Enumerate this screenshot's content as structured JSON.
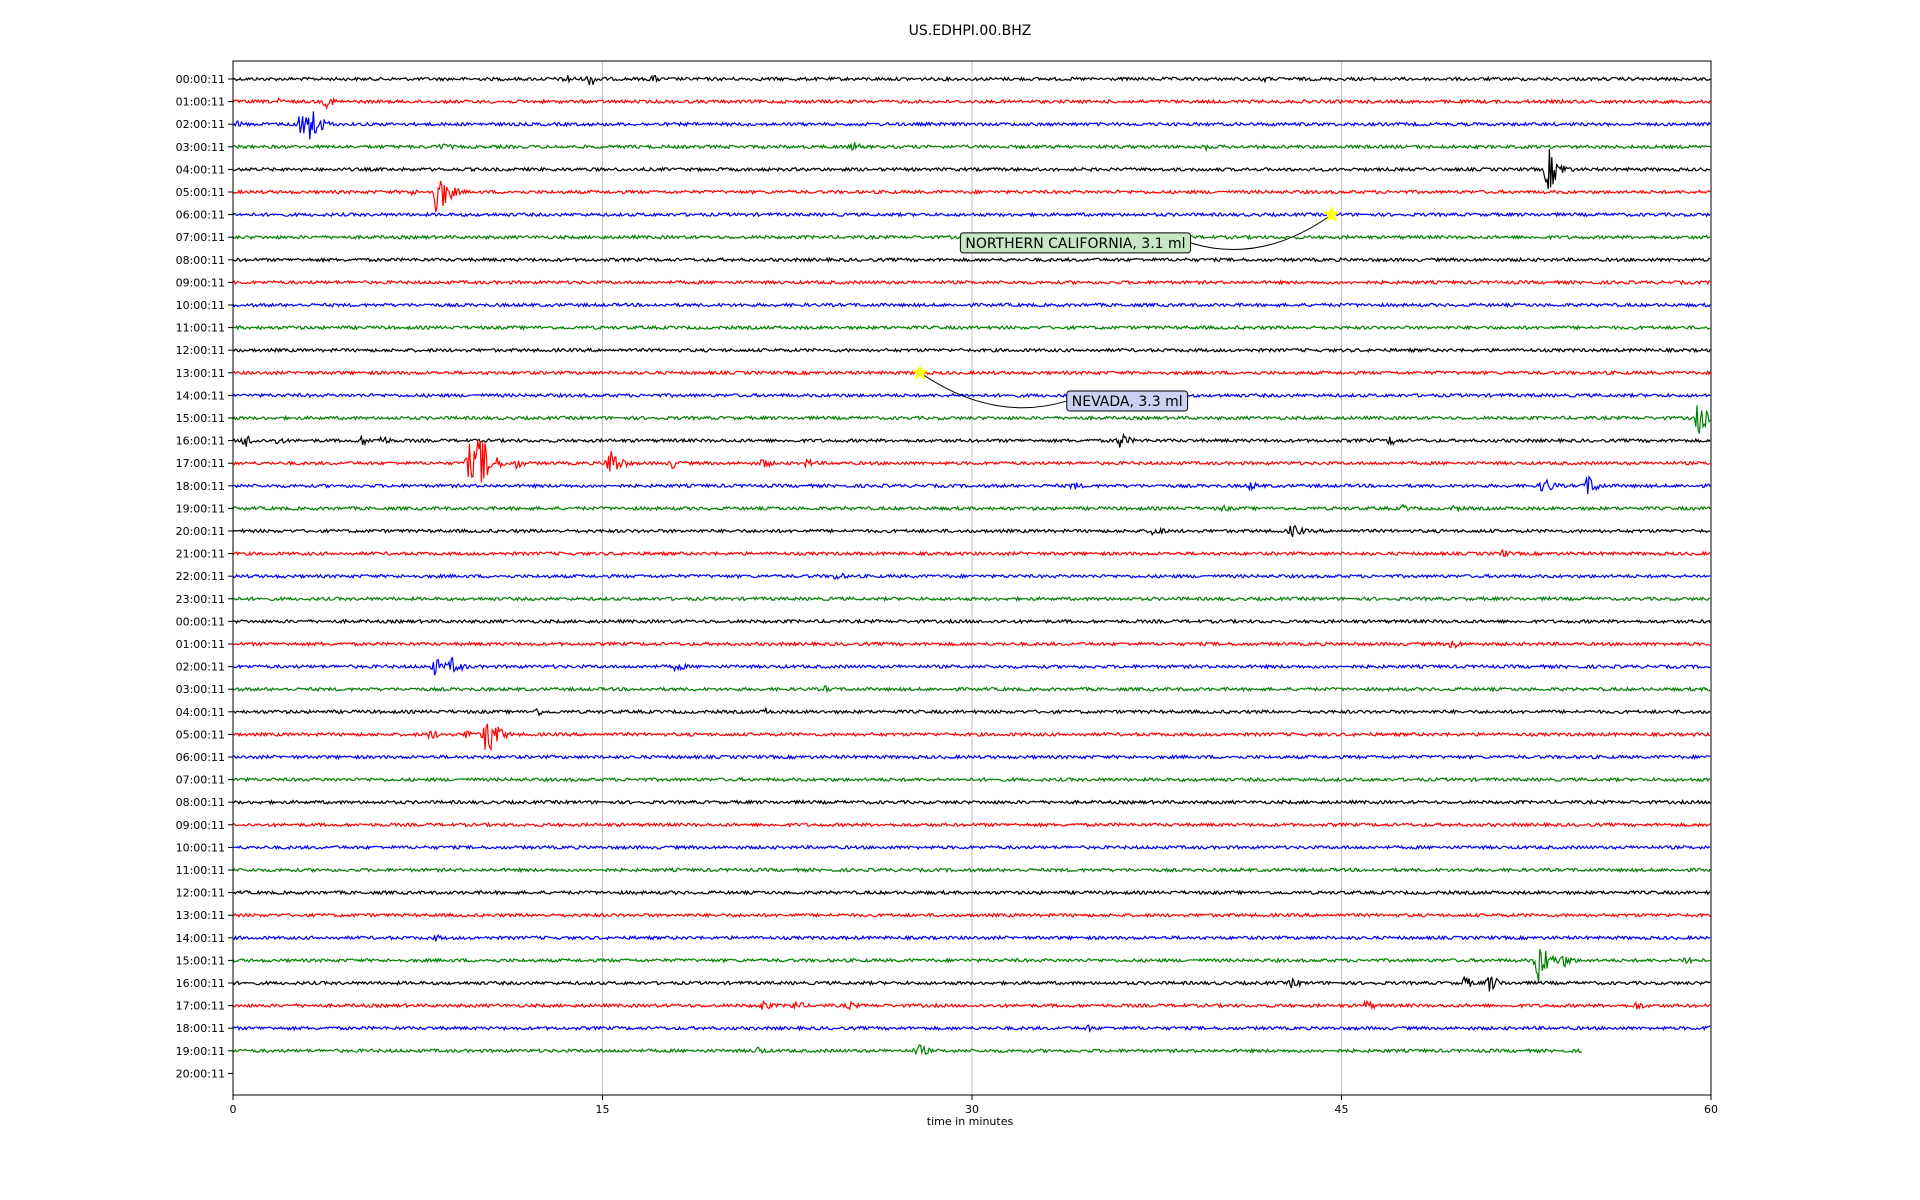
{
  "chart_data": {
    "type": "line",
    "title": "US.EDHPI.00.BHZ",
    "xlabel": "time in minutes",
    "ylabel": "",
    "xlim": [
      0,
      60
    ],
    "xticks": [
      "0",
      "15",
      "30",
      "45",
      "60"
    ],
    "grid": "vertical gridlines at x ticks",
    "colors": [
      "#000000",
      "#ff0000",
      "#0000ff",
      "#008000"
    ],
    "row_labels": [
      "00:00:11",
      "01:00:11",
      "02:00:11",
      "03:00:11",
      "04:00:11",
      "05:00:11",
      "06:00:11",
      "07:00:11",
      "08:00:11",
      "09:00:11",
      "10:00:11",
      "11:00:11",
      "12:00:11",
      "13:00:11",
      "14:00:11",
      "15:00:11",
      "16:00:11",
      "17:00:11",
      "18:00:11",
      "19:00:11",
      "20:00:11",
      "21:00:11",
      "22:00:11",
      "23:00:11",
      "00:00:11",
      "01:00:11",
      "02:00:11",
      "03:00:11",
      "04:00:11",
      "05:00:11",
      "06:00:11",
      "07:00:11",
      "08:00:11",
      "09:00:11",
      "10:00:11",
      "11:00:11",
      "12:00:11",
      "13:00:11",
      "14:00:11",
      "15:00:11",
      "16:00:11",
      "17:00:11",
      "18:00:11",
      "19:00:11",
      "20:00:11"
    ],
    "last_row_end_minute": 54.8,
    "events": [
      {
        "row": 0,
        "t": 13.5,
        "amp": 6
      },
      {
        "row": 0,
        "t": 14.5,
        "amp": 8
      },
      {
        "row": 0,
        "t": 17,
        "amp": 5
      },
      {
        "row": 0,
        "t": 41.8,
        "amp": 4
      },
      {
        "row": 1,
        "t": 1.8,
        "amp": 4
      },
      {
        "row": 1,
        "t": 3.8,
        "amp": 7
      },
      {
        "row": 2,
        "t": 0.2,
        "amp": 4
      },
      {
        "row": 2,
        "t": 2.6,
        "amp": 14
      },
      {
        "row": 2,
        "t": 3.0,
        "amp": 30
      },
      {
        "row": 3,
        "t": 8.5,
        "amp": 5
      },
      {
        "row": 3,
        "t": 25.2,
        "amp": 5
      },
      {
        "row": 3,
        "t": 39.5,
        "amp": 4
      },
      {
        "row": 4,
        "t": 53.4,
        "amp": 24
      },
      {
        "row": 5,
        "t": 7.2,
        "amp": 4
      },
      {
        "row": 5,
        "t": 8.3,
        "amp": 28
      },
      {
        "row": 15,
        "t": 59.5,
        "amp": 18
      },
      {
        "row": 16,
        "t": 0.5,
        "amp": 8
      },
      {
        "row": 16,
        "t": 1.8,
        "amp": 5
      },
      {
        "row": 16,
        "t": 5.2,
        "amp": 6
      },
      {
        "row": 16,
        "t": 6.0,
        "amp": 6
      },
      {
        "row": 16,
        "t": 36,
        "amp": 9
      },
      {
        "row": 16,
        "t": 47,
        "amp": 6
      },
      {
        "row": 17,
        "t": 9.6,
        "amp": 20
      },
      {
        "row": 17,
        "t": 10.0,
        "amp": 36
      },
      {
        "row": 17,
        "t": 11.5,
        "amp": 6
      },
      {
        "row": 17,
        "t": 15.3,
        "amp": 18
      },
      {
        "row": 17,
        "t": 17.8,
        "amp": 6
      },
      {
        "row": 17,
        "t": 21.5,
        "amp": 6
      },
      {
        "row": 17,
        "t": 23.3,
        "amp": 5
      },
      {
        "row": 18,
        "t": 34.1,
        "amp": 5
      },
      {
        "row": 18,
        "t": 41.3,
        "amp": 5
      },
      {
        "row": 18,
        "t": 53.2,
        "amp": 10
      },
      {
        "row": 18,
        "t": 55.0,
        "amp": 12
      },
      {
        "row": 19,
        "t": 40.2,
        "amp": 4
      },
      {
        "row": 19,
        "t": 47.5,
        "amp": 4
      },
      {
        "row": 19,
        "t": 49.6,
        "amp": 4
      },
      {
        "row": 20,
        "t": 37.4,
        "amp": 7
      },
      {
        "row": 20,
        "t": 43.0,
        "amp": 8
      },
      {
        "row": 21,
        "t": 51.5,
        "amp": 5
      },
      {
        "row": 22,
        "t": 24.5,
        "amp": 5
      },
      {
        "row": 25,
        "t": 49.5,
        "amp": 6
      },
      {
        "row": 26,
        "t": 8.2,
        "amp": 10
      },
      {
        "row": 26,
        "t": 8.9,
        "amp": 10
      },
      {
        "row": 26,
        "t": 18,
        "amp": 6
      },
      {
        "row": 27,
        "t": 24,
        "amp": 4
      },
      {
        "row": 28,
        "t": 12.3,
        "amp": 5
      },
      {
        "row": 28,
        "t": 21.6,
        "amp": 4
      },
      {
        "row": 29,
        "t": 8.0,
        "amp": 6
      },
      {
        "row": 29,
        "t": 9.5,
        "amp": 6
      },
      {
        "row": 29,
        "t": 10.3,
        "amp": 26
      },
      {
        "row": 38,
        "t": 8.2,
        "amp": 4
      },
      {
        "row": 39,
        "t": 53.0,
        "amp": 24
      },
      {
        "row": 39,
        "t": 54.0,
        "amp": 8
      },
      {
        "row": 39,
        "t": 59.0,
        "amp": 6
      },
      {
        "row": 40,
        "t": 43.0,
        "amp": 6
      },
      {
        "row": 40,
        "t": 50.0,
        "amp": 7
      },
      {
        "row": 40,
        "t": 51.0,
        "amp": 10
      },
      {
        "row": 41,
        "t": 21.5,
        "amp": 6
      },
      {
        "row": 41,
        "t": 22.8,
        "amp": 6
      },
      {
        "row": 41,
        "t": 25.0,
        "amp": 5
      },
      {
        "row": 41,
        "t": 46.0,
        "amp": 6
      },
      {
        "row": 41,
        "t": 57.0,
        "amp": 5
      },
      {
        "row": 42,
        "t": 34.7,
        "amp": 4
      },
      {
        "row": 42,
        "t": 59.9,
        "amp": 6
      },
      {
        "row": 43,
        "t": 21.3,
        "amp": 5
      },
      {
        "row": 43,
        "t": 27.8,
        "amp": 8
      }
    ],
    "annotations": [
      {
        "text": "NORTHERN CALIFORNIA, 3.1 ml",
        "marker_row": 6,
        "marker_t": 44.6,
        "label_t": 34.2,
        "label_row": 7.25,
        "box_fill": "#c6e6c6"
      },
      {
        "text": "NEVADA, 3.3 ml",
        "marker_row": 13,
        "marker_t": 27.9,
        "label_t": 36.3,
        "label_row": 14.25,
        "box_fill": "#ccd0f2"
      }
    ],
    "marker_color": "#ffff00"
  }
}
